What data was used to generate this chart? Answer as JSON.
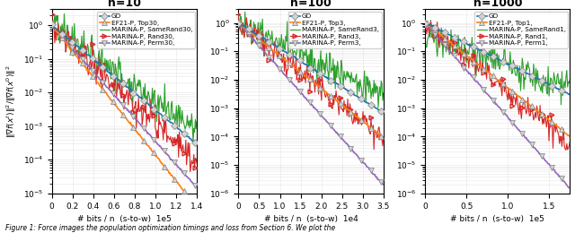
{
  "colors": {
    "GD": "#1f77b4",
    "EF21": "#ff7f0e",
    "SameRand": "#2ca02c",
    "Rand": "#d62728",
    "Perm": "#9467bd"
  },
  "ylabel": "$\\|\\nabla f(x^t)\\|^2/\\|\\nabla f(x^0)\\|^2$",
  "panels": [
    {
      "title": "n=10",
      "xlim": [
        0,
        140000.0
      ],
      "ylim": [
        1e-05,
        3
      ],
      "xticks": [
        0,
        20000.0,
        40000.0,
        60000.0,
        80000.0,
        100000.0,
        120000.0,
        140000.0
      ],
      "xticklabels": [
        "0",
        "0.2",
        "0.4",
        "0.6",
        "0.8",
        "1.0",
        "1.2",
        "1.4"
      ],
      "xexp": "1e5",
      "legends": [
        "GD",
        "EF21-P, Top30,",
        "MARINA-P, SameRand30,",
        "MARINA-P, Rand30,",
        "MARINA-P, Perm30,"
      ],
      "gd_end": 0.0003,
      "ef_end": 4e-06,
      "sr_start": 1.0,
      "sr_end": 0.0008,
      "r_start": 1.0,
      "r_end": 0.0001,
      "p_end": 1.5e-05,
      "npts": 200
    },
    {
      "title": "n=100",
      "xlim": [
        0,
        35000.0
      ],
      "ylim": [
        1e-06,
        3
      ],
      "xticks": [
        0,
        5000.0,
        10000.0,
        15000.0,
        20000.0,
        25000.0,
        30000.0,
        35000.0
      ],
      "xticklabels": [
        "0",
        "0.5",
        "1.0",
        "1.5",
        "2.0",
        "2.5",
        "3.0",
        "3.5"
      ],
      "xexp": "1e4",
      "legends": [
        "GD",
        "EF21-P, Top3,",
        "MARINA-P, SameRand3,",
        "MARINA-P, Rand3,",
        "MARINA-P, Perm3,"
      ],
      "gd_end": 0.0007,
      "ef_end": 9e-05,
      "sr_start": 1.0,
      "sr_end": 0.003,
      "r_start": 1.0,
      "r_end": 8e-05,
      "p_end": 2e-06,
      "npts": 200
    },
    {
      "title": "n=1000",
      "xlim": [
        0,
        175000.0
      ],
      "ylim": [
        1e-06,
        3
      ],
      "xticks": [
        0,
        50000.0,
        100000.0,
        150000.0
      ],
      "xticklabels": [
        "0",
        "0.5",
        "1.0",
        "1.5"
      ],
      "xexp": "1e5",
      "legends": [
        "GD",
        "EF21-P, Top1,",
        "MARINA-P, SameRand1,",
        "MARINA-P, Rand1,",
        "MARINA-P, Perm1,"
      ],
      "gd_end": 0.003,
      "ef_end": 0.0001,
      "sr_start": 0.4,
      "sr_end": 0.005,
      "r_start": 1.0,
      "r_end": 5e-05,
      "p_end": 1.5e-06,
      "npts": 180
    }
  ]
}
